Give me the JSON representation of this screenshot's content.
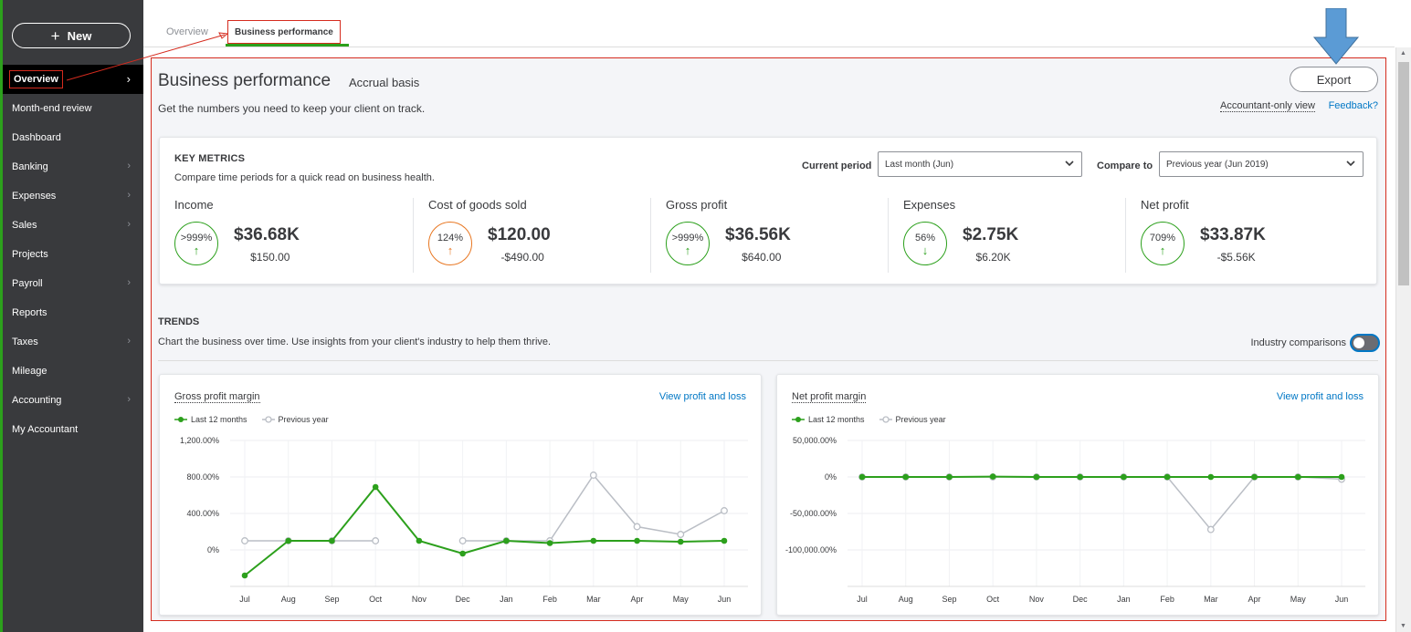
{
  "colors": {
    "brand_green": "#2ca01c",
    "sidebar_bg": "#393a3d",
    "link_blue": "#0077c5",
    "annotation_red": "#d52b1e",
    "warning_orange": "#e87722",
    "previous_gray": "#babec5"
  },
  "sidebar": {
    "new_label": "New",
    "new_icon": "plus-icon",
    "items": [
      {
        "label": "Overview",
        "chevron": true,
        "active": true
      },
      {
        "label": "Month-end review",
        "chevron": false
      },
      {
        "label": "Dashboard",
        "chevron": false
      },
      {
        "label": "Banking",
        "chevron": true
      },
      {
        "label": "Expenses",
        "chevron": true
      },
      {
        "label": "Sales",
        "chevron": true
      },
      {
        "label": "Projects",
        "chevron": false
      },
      {
        "label": "Payroll",
        "chevron": true
      },
      {
        "label": "Reports",
        "chevron": false
      },
      {
        "label": "Taxes",
        "chevron": true
      },
      {
        "label": "Mileage",
        "chevron": false
      },
      {
        "label": "Accounting",
        "chevron": true
      },
      {
        "label": "My Accountant",
        "chevron": false
      }
    ]
  },
  "tabs": [
    {
      "label": "Overview",
      "active": false
    },
    {
      "label": "Business performance",
      "active": true
    }
  ],
  "header": {
    "title": "Business performance",
    "basis": "Accrual basis",
    "subtitle": "Get the numbers you need to keep your client on track.",
    "export_label": "Export",
    "accountant_view": "Accountant-only view",
    "feedback": "Feedback?"
  },
  "key_metrics": {
    "title": "KEY METRICS",
    "description": "Compare time periods for a quick read on business health.",
    "current_period_label": "Current period",
    "current_period_value": "Last month (Jun)",
    "compare_label": "Compare to",
    "compare_value": "Previous year (Jun 2019)",
    "metrics": [
      {
        "name": "Income",
        "pct": ">999%",
        "direction": "up",
        "tone": "green",
        "value": "$36.68K",
        "prior": "$150.00"
      },
      {
        "name": "Cost of goods sold",
        "pct": "124%",
        "direction": "up",
        "tone": "orange",
        "value": "$120.00",
        "prior": "-$490.00"
      },
      {
        "name": "Gross profit",
        "pct": ">999%",
        "direction": "up",
        "tone": "green",
        "value": "$36.56K",
        "prior": "$640.00"
      },
      {
        "name": "Expenses",
        "pct": "56%",
        "direction": "down",
        "tone": "green",
        "value": "$2.75K",
        "prior": "$6.20K"
      },
      {
        "name": "Net profit",
        "pct": "709%",
        "direction": "up",
        "tone": "green",
        "value": "$33.87K",
        "prior": "-$5.56K"
      }
    ]
  },
  "trends": {
    "title": "TRENDS",
    "description": "Chart the business over time. Use insights from your client's industry to help them thrive.",
    "industry_label": "Industry comparisons",
    "industry_enabled": false
  },
  "chart_data": [
    {
      "type": "line",
      "title": "Gross profit margin",
      "link": "View profit and loss",
      "categories": [
        "Jul",
        "Aug",
        "Sep",
        "Oct",
        "Nov",
        "Dec",
        "Jan",
        "Feb",
        "Mar",
        "Apr",
        "May",
        "Jun"
      ],
      "y_ticks": [
        1200,
        800,
        400,
        0
      ],
      "y_tick_labels": [
        "1,200.00%",
        "800.00%",
        "400.00%",
        "0%"
      ],
      "ylim": [
        -400,
        1200
      ],
      "grid": true,
      "legend_position": "top-left",
      "series": [
        {
          "name": "Last 12 months",
          "color": "#2ca01c",
          "filled": true,
          "values": [
            -280,
            100,
            100,
            690,
            100,
            -40,
            100,
            75,
            100,
            100,
            90,
            100
          ]
        },
        {
          "name": "Previous year",
          "color": "#babec5",
          "filled": false,
          "values": [
            100,
            100,
            100,
            100,
            null,
            100,
            100,
            100,
            820,
            255,
            170,
            430
          ]
        }
      ]
    },
    {
      "type": "line",
      "title": "Net profit margin",
      "link": "View profit and loss",
      "categories": [
        "Jul",
        "Aug",
        "Sep",
        "Oct",
        "Nov",
        "Dec",
        "Jan",
        "Feb",
        "Mar",
        "Apr",
        "May",
        "Jun"
      ],
      "y_ticks": [
        50000,
        0,
        -50000,
        -100000
      ],
      "y_tick_labels": [
        "50,000.00%",
        "0%",
        "-50,000.00%",
        "-100,000.00%"
      ],
      "ylim": [
        -150000,
        50000
      ],
      "grid": true,
      "legend_position": "top-left",
      "series": [
        {
          "name": "Last 12 months",
          "color": "#2ca01c",
          "filled": true,
          "values": [
            0,
            0,
            0,
            500,
            0,
            0,
            0,
            0,
            0,
            0,
            0,
            0
          ]
        },
        {
          "name": "Previous year",
          "color": "#babec5",
          "filled": false,
          "values": [
            0,
            0,
            0,
            0,
            0,
            0,
            0,
            0,
            -72000,
            0,
            0,
            -3000
          ]
        }
      ]
    }
  ]
}
